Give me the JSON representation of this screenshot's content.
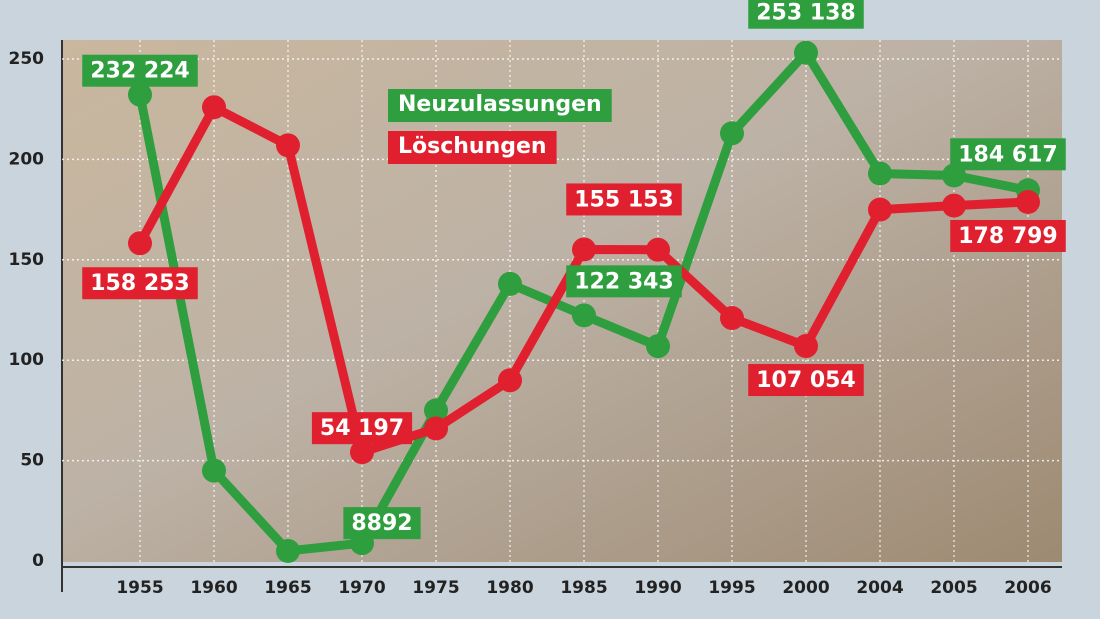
{
  "chart_data": {
    "type": "line",
    "categories": [
      "1955",
      "1960",
      "1965",
      "1970",
      "1975",
      "1980",
      "1985",
      "1990",
      "1995",
      "2000",
      "2004",
      "2005",
      "2006"
    ],
    "series": [
      {
        "name": "Neuzulassungen",
        "color": "#2e9e3e",
        "values": [
          232.224,
          45,
          5,
          8.892,
          75,
          138,
          122.343,
          107,
          213,
          253.138,
          193,
          192,
          184.617
        ],
        "value_labels": [
          "232 224",
          null,
          null,
          "8892",
          null,
          null,
          "122 343",
          null,
          null,
          "253 138",
          null,
          null,
          "184 617"
        ]
      },
      {
        "name": "Löschungen",
        "color": "#e0202e",
        "values": [
          158.253,
          226,
          207,
          54.197,
          66,
          90,
          155.153,
          155,
          121,
          107.054,
          175,
          177,
          178.799
        ],
        "value_labels": [
          "158 253",
          null,
          null,
          "54 197",
          null,
          null,
          "155 153",
          null,
          null,
          "107 054",
          null,
          null,
          "178 799"
        ]
      }
    ],
    "ylim": [
      0,
      250
    ],
    "yticks": [
      0,
      50,
      100,
      150,
      200,
      250
    ],
    "grid": true
  }
}
